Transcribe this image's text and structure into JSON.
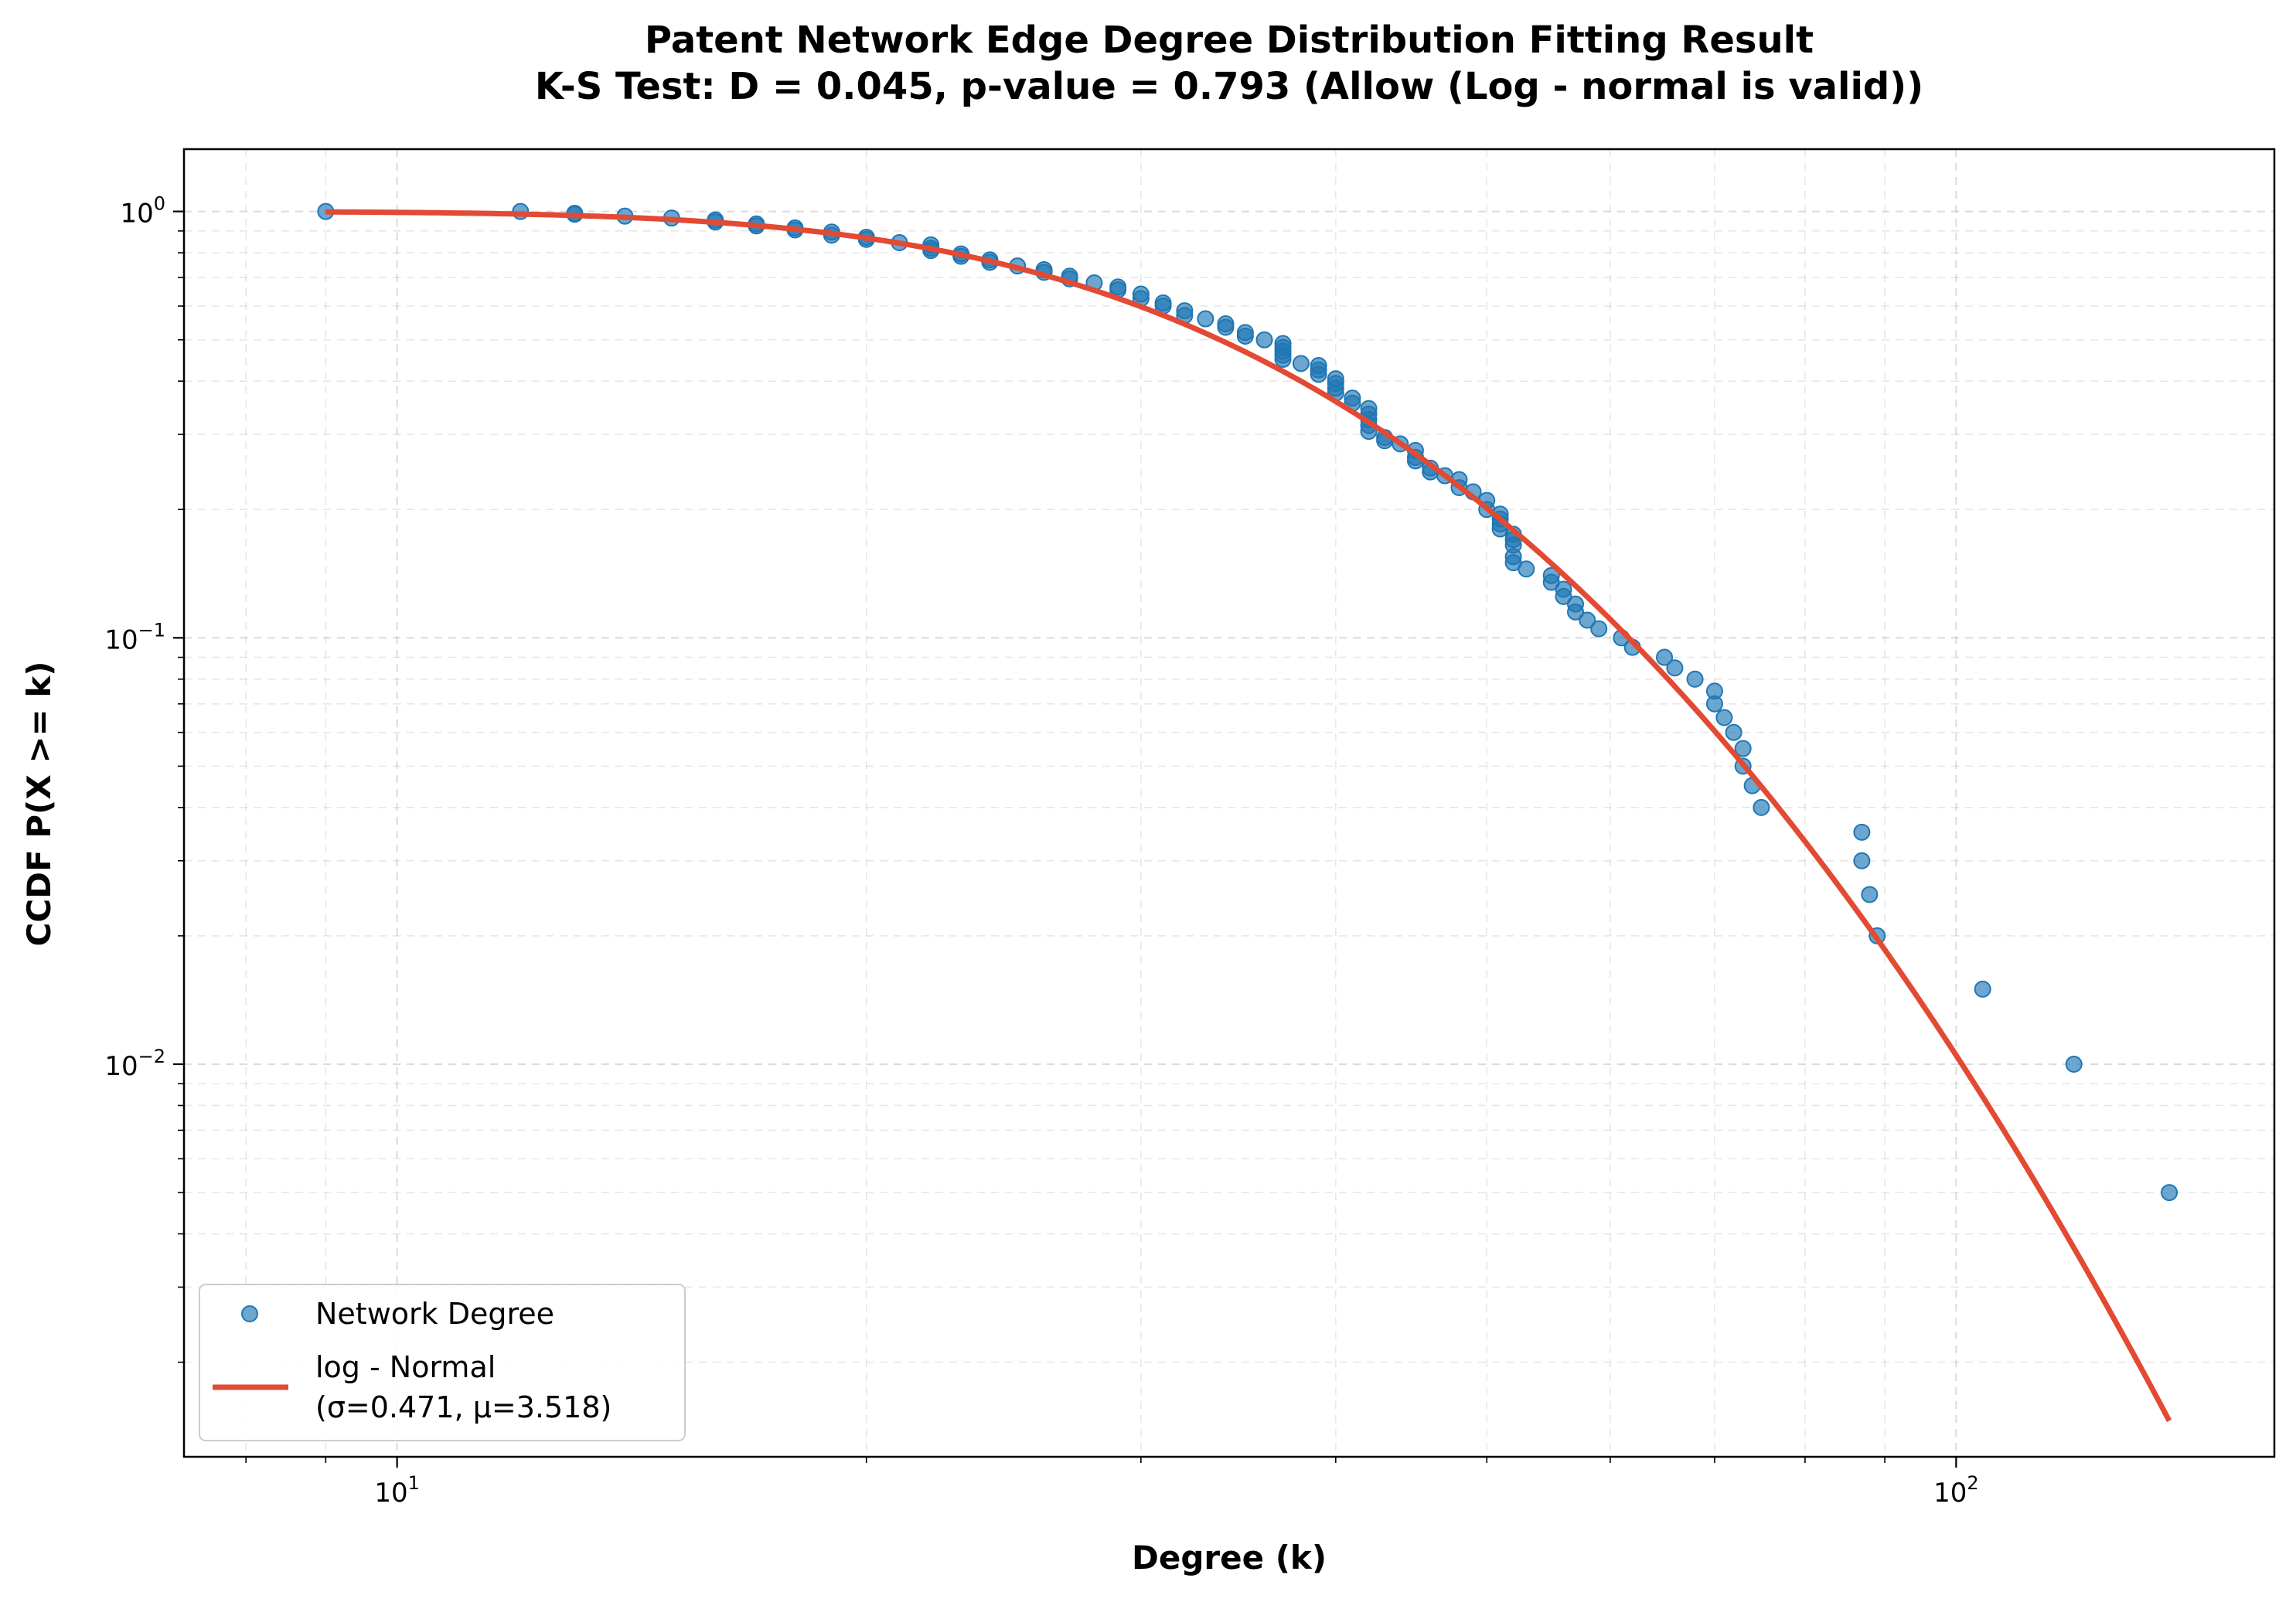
{
  "chart_data": {
    "type": "scatter",
    "title": "Patent Network Edge Degree Distribution Fitting Result",
    "subtitle": "K-S Test: D = 0.045, p-value = 0.793 (Allow (Log - normal is valid))",
    "xlabel": "Degree (k)",
    "ylabel": "CCDF P(X >= k)",
    "xscale": "log",
    "yscale": "log",
    "xlim": [
      7.3,
      160
    ],
    "ylim": [
      0.0012,
      1.4
    ],
    "grid": true,
    "legend_position": "lower-left",
    "x_ticks": [
      {
        "base": "10",
        "exp": "1",
        "value": 10
      },
      {
        "base": "10",
        "exp": "2",
        "value": 100
      }
    ],
    "y_ticks": [
      {
        "base": "10",
        "exp": "0",
        "value": 1
      },
      {
        "base": "10",
        "exp": "−1",
        "value": 0.1
      },
      {
        "base": "10",
        "exp": "−2",
        "value": 0.01
      }
    ],
    "series": [
      {
        "name": "Network Degree",
        "kind": "scatter",
        "color": "#1f77b4",
        "points": [
          [
            9.0,
            1.0
          ],
          [
            12.0,
            1.0
          ],
          [
            13.0,
            0.99
          ],
          [
            13.0,
            0.985
          ],
          [
            14.0,
            0.975
          ],
          [
            15.0,
            0.965
          ],
          [
            16.0,
            0.955
          ],
          [
            16.0,
            0.945
          ],
          [
            17.0,
            0.935
          ],
          [
            17.0,
            0.925
          ],
          [
            18.0,
            0.915
          ],
          [
            18.0,
            0.905
          ],
          [
            19.0,
            0.895
          ],
          [
            19.0,
            0.88
          ],
          [
            20.0,
            0.87
          ],
          [
            20.0,
            0.86
          ],
          [
            21.0,
            0.845
          ],
          [
            22.0,
            0.835
          ],
          [
            22.0,
            0.82
          ],
          [
            22.0,
            0.81
          ],
          [
            23.0,
            0.795
          ],
          [
            23.0,
            0.785
          ],
          [
            24.0,
            0.77
          ],
          [
            24.0,
            0.76
          ],
          [
            25.0,
            0.745
          ],
          [
            26.0,
            0.73
          ],
          [
            26.0,
            0.72
          ],
          [
            27.0,
            0.705
          ],
          [
            27.0,
            0.695
          ],
          [
            28.0,
            0.68
          ],
          [
            29.0,
            0.665
          ],
          [
            29.0,
            0.655
          ],
          [
            30.0,
            0.64
          ],
          [
            30.0,
            0.625
          ],
          [
            31.0,
            0.61
          ],
          [
            31.0,
            0.6
          ],
          [
            32.0,
            0.585
          ],
          [
            32.0,
            0.57
          ],
          [
            33.0,
            0.56
          ],
          [
            34.0,
            0.545
          ],
          [
            34.0,
            0.535
          ],
          [
            35.0,
            0.52
          ],
          [
            35.0,
            0.51
          ],
          [
            36.0,
            0.5
          ],
          [
            37.0,
            0.49
          ],
          [
            37.0,
            0.48
          ],
          [
            37.0,
            0.47
          ],
          [
            37.0,
            0.46
          ],
          [
            37.0,
            0.45
          ],
          [
            38.0,
            0.44
          ],
          [
            39.0,
            0.435
          ],
          [
            39.0,
            0.425
          ],
          [
            39.0,
            0.415
          ],
          [
            40.0,
            0.405
          ],
          [
            40.0,
            0.395
          ],
          [
            40.0,
            0.385
          ],
          [
            40.0,
            0.375
          ],
          [
            41.0,
            0.365
          ],
          [
            41.0,
            0.355
          ],
          [
            42.0,
            0.345
          ],
          [
            42.0,
            0.335
          ],
          [
            42.0,
            0.325
          ],
          [
            42.0,
            0.315
          ],
          [
            42.0,
            0.305
          ],
          [
            43.0,
            0.295
          ],
          [
            43.0,
            0.29
          ],
          [
            44.0,
            0.285
          ],
          [
            45.0,
            0.275
          ],
          [
            45.0,
            0.265
          ],
          [
            45.0,
            0.26
          ],
          [
            46.0,
            0.25
          ],
          [
            46.0,
            0.245
          ],
          [
            47.0,
            0.24
          ],
          [
            48.0,
            0.235
          ],
          [
            48.0,
            0.225
          ],
          [
            49.0,
            0.22
          ],
          [
            50.0,
            0.21
          ],
          [
            50.0,
            0.2
          ],
          [
            51.0,
            0.195
          ],
          [
            51.0,
            0.19
          ],
          [
            51.0,
            0.185
          ],
          [
            51.0,
            0.18
          ],
          [
            52.0,
            0.175
          ],
          [
            52.0,
            0.17
          ],
          [
            52.0,
            0.165
          ],
          [
            52.0,
            0.155
          ],
          [
            52.0,
            0.15
          ],
          [
            53.0,
            0.145
          ],
          [
            55.0,
            0.14
          ],
          [
            55.0,
            0.135
          ],
          [
            56.0,
            0.13
          ],
          [
            56.0,
            0.125
          ],
          [
            57.0,
            0.12
          ],
          [
            57.0,
            0.115
          ],
          [
            58.0,
            0.11
          ],
          [
            59.0,
            0.105
          ],
          [
            61.0,
            0.1
          ],
          [
            62.0,
            0.095
          ],
          [
            65.0,
            0.09
          ],
          [
            66.0,
            0.085
          ],
          [
            68.0,
            0.08
          ],
          [
            70.0,
            0.075
          ],
          [
            70.0,
            0.07
          ],
          [
            71.0,
            0.065
          ],
          [
            72.0,
            0.06
          ],
          [
            73.0,
            0.055
          ],
          [
            73.0,
            0.05
          ],
          [
            74.0,
            0.045
          ],
          [
            75.0,
            0.04
          ],
          [
            87.0,
            0.035
          ],
          [
            87.0,
            0.03
          ],
          [
            88.0,
            0.025
          ],
          [
            89.0,
            0.02
          ],
          [
            104.0,
            0.015
          ],
          [
            119.0,
            0.01
          ],
          [
            137.0,
            0.005
          ]
        ]
      },
      {
        "name": "log - Normal",
        "name2": "(σ=0.471, μ=3.518)",
        "kind": "line",
        "color": "#e24a33",
        "sigma": 0.471,
        "mu": 3.518,
        "x_range": [
          9.0,
          137.0
        ]
      }
    ]
  }
}
